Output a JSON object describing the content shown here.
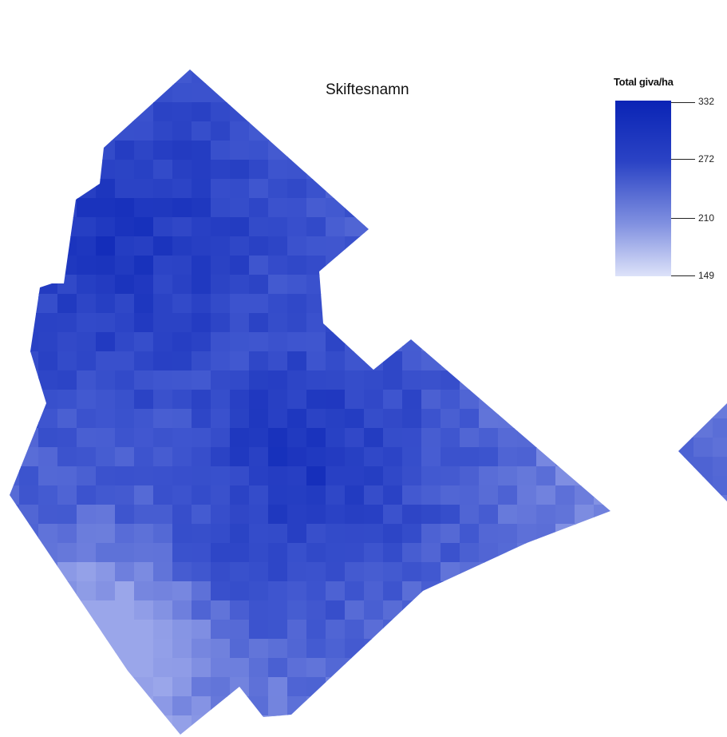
{
  "map": {
    "title": "Skiftesnamn",
    "colors": {
      "min": "#d6dcf7",
      "mid": "#3f56cf",
      "max": "#0a24b5",
      "background": "#ffffff"
    }
  },
  "legend": {
    "title": "Total giva/ha",
    "ticks": [
      "332",
      "272",
      "210",
      "149"
    ],
    "range": [
      149,
      332
    ]
  }
}
